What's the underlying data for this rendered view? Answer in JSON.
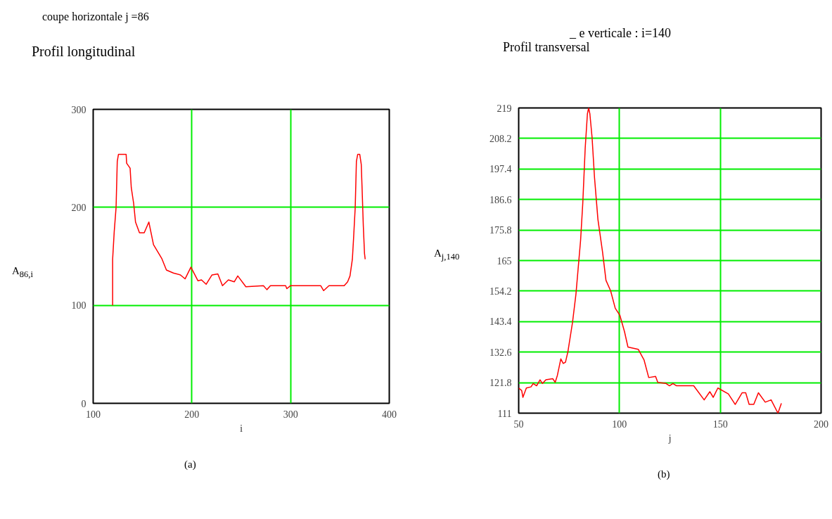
{
  "chart_data": [
    {
      "type": "line",
      "title": "coupe horizontale j =86",
      "subtitle": "Profil longitudinal",
      "xlabel": "i",
      "ylabel": "A$_{86,i}$",
      "x": [
        119.7,
        119.7,
        121.3,
        123.2,
        124.4,
        125.6,
        129,
        133.4,
        133.9,
        137.4,
        138.6,
        141,
        142.9,
        146.9,
        151.7,
        156.4,
        161.1,
        169.4,
        174.2,
        181.3,
        188.4,
        193.1,
        199,
        206.2,
        209.7,
        214.5,
        220.4,
        226.3,
        231,
        237,
        243,
        246.5,
        254.7,
        272.5,
        276,
        279.6,
        295,
        296.2,
        299.8,
        330.6,
        333.5,
        338.9,
        354.3,
        357.8,
        360.2,
        362.6,
        363.8,
        365.5,
        366.7,
        368,
        370.1,
        371.6,
        372.5,
        373.7,
        374.9,
        375.6
      ],
      "series": [
        {
          "color": "#ff0000",
          "values": [
            100,
            147,
            175,
            200,
            247,
            254,
            254,
            254,
            245,
            240,
            220,
            204,
            185,
            174,
            174,
            185,
            162,
            148,
            136,
            133,
            131,
            127,
            139,
            125,
            126,
            121.5,
            131,
            132,
            120,
            126,
            124,
            130,
            119,
            120,
            116,
            120,
            120,
            117,
            120,
            120,
            115,
            120,
            120,
            124,
            130,
            147,
            168,
            200,
            247,
            254,
            254,
            244,
            218,
            181,
            153,
            147
          ]
        }
      ],
      "xlim": [
        100,
        400
      ],
      "ylim": [
        0,
        300
      ],
      "xticks": [
        100,
        200,
        300,
        400
      ],
      "yticks": [
        0,
        100,
        200,
        300
      ],
      "grid": true,
      "annotations": [
        "(a)"
      ]
    },
    {
      "type": "line",
      "title": "_ e verticale : i=140",
      "subtitle": "Profil transversal",
      "xlabel": "j",
      "ylabel": "A$_{j,140}$",
      "x": [
        50,
        51.5,
        52.1,
        53.8,
        56.1,
        57.2,
        58.9,
        60.6,
        61.8,
        63.5,
        66.9,
        68.1,
        69.2,
        70.9,
        72.1,
        73.2,
        74.4,
        76.7,
        78.4,
        79.5,
        80.7,
        81.8,
        83,
        84.1,
        84.7,
        85.3,
        86.4,
        87.6,
        89.3,
        91.6,
        93.3,
        95.6,
        97.9,
        100.2,
        102.5,
        104.2,
        109.3,
        112.2,
        114.5,
        117.9,
        119,
        123.1,
        124.8,
        126.5,
        128.3,
        136.8,
        142,
        144.8,
        146.5,
        148.8,
        154,
        157.4,
        160.8,
        162.6,
        164.3,
        166.6,
        168.9,
        172.3,
        175.2,
        178.6,
        180.3
      ],
      "series": [
        {
          "color": "#ff0000",
          "values": [
            119.9,
            119,
            116.6,
            119.9,
            120.3,
            121.5,
            120.7,
            122.8,
            121.5,
            122.8,
            123.2,
            121.9,
            124.4,
            130.2,
            128.6,
            129,
            132.7,
            143.1,
            153.1,
            162.2,
            172.1,
            185.4,
            204.9,
            217,
            219,
            217,
            208.6,
            194.5,
            179.6,
            168,
            158,
            154.3,
            148.1,
            145.6,
            139.8,
            134.4,
            133.6,
            129.8,
            123.6,
            124,
            121.9,
            121.5,
            120.7,
            121.5,
            120.7,
            120.7,
            115.7,
            118.6,
            116.6,
            119.9,
            117.8,
            114.1,
            118.2,
            118.2,
            114.1,
            114.1,
            118.2,
            114.9,
            115.7,
            111,
            114.5
          ]
        }
      ],
      "xlim": [
        50,
        200
      ],
      "ylim": [
        111,
        219
      ],
      "xticks": [
        50,
        100,
        150,
        200
      ],
      "yticks": [
        111,
        121.8,
        132.6,
        143.4,
        154.2,
        165,
        175.8,
        186.6,
        197.4,
        208.2,
        219
      ],
      "grid": true,
      "annotations": [
        "(b)"
      ]
    }
  ]
}
